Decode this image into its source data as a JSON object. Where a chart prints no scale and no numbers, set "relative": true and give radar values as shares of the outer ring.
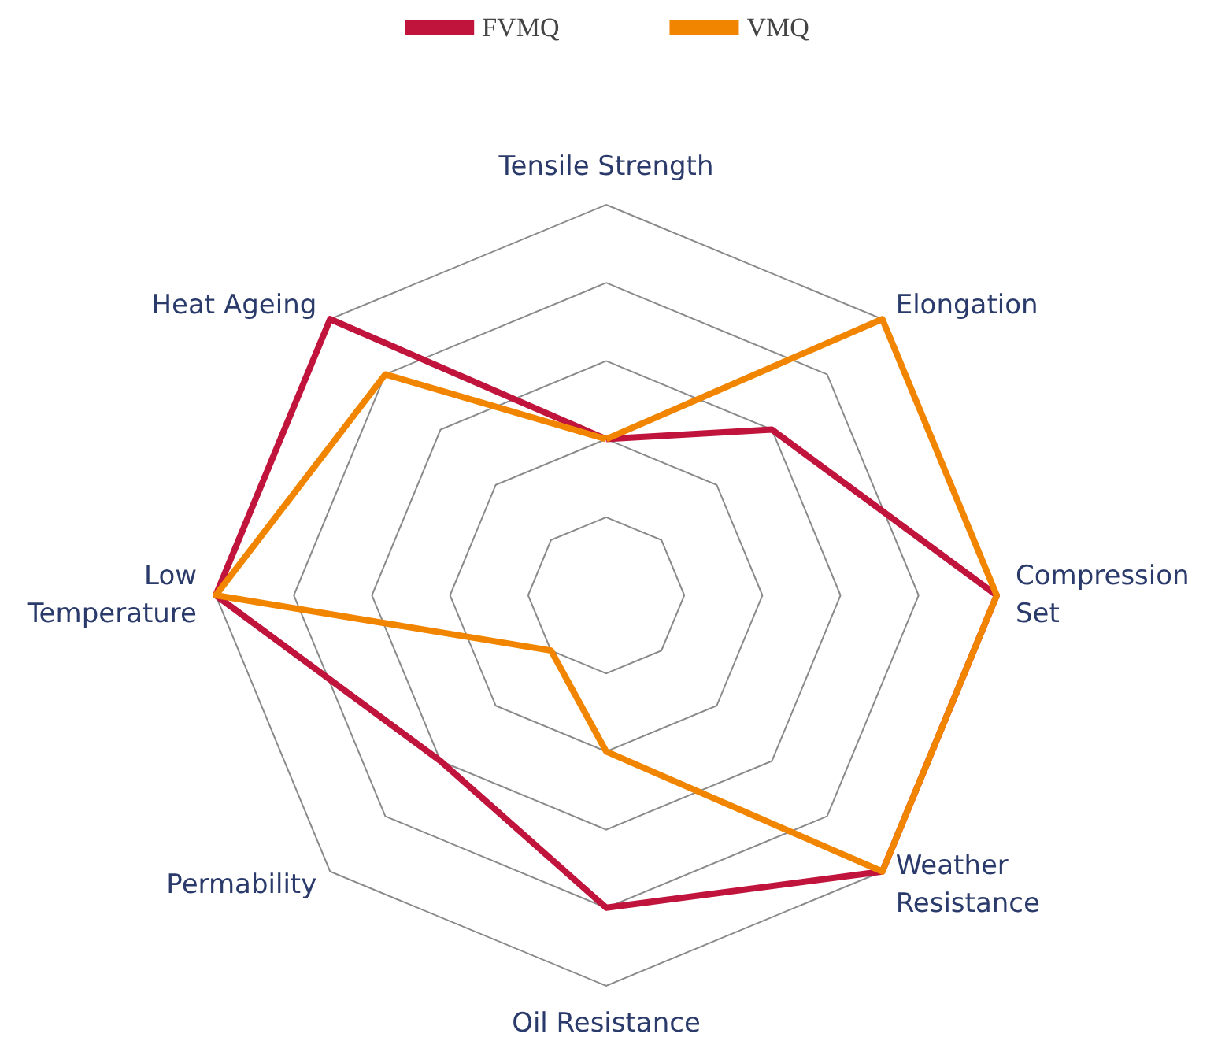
{
  "chart_data": {
    "type": "radar",
    "relative": true,
    "legend": "top",
    "marker": "none",
    "line_style": "solid",
    "categories": [
      "Tensile Strength",
      "Elongation",
      "Compression\nSet",
      "Weather\nResistance",
      "Oil Resistance",
      "Permability",
      "Low\nTemperature",
      "Heat Ageing"
    ],
    "series": [
      {
        "name": "FVMQ",
        "color": "#c0143c",
        "values": [
          0.4,
          0.6,
          1.0,
          1.0,
          0.8,
          0.6,
          1.0,
          1.0
        ]
      },
      {
        "name": "VMQ",
        "color": "#f28500",
        "values": [
          0.4,
          1.0,
          1.0,
          1.0,
          0.4,
          0.2,
          1.0,
          0.8
        ]
      }
    ]
  }
}
